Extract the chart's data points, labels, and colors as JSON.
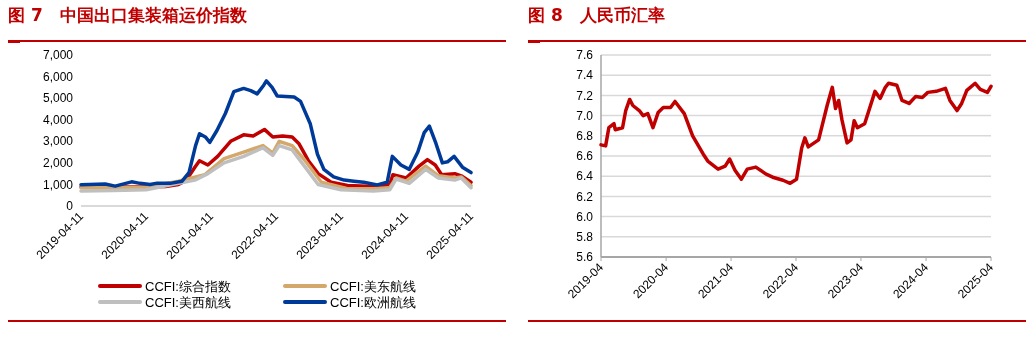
{
  "chart_data": [
    {
      "type": "line",
      "title": "图 7　中国出口集装箱运价指数",
      "xlim": [
        "2019-04-11",
        "2025-04-11"
      ],
      "xticks": [
        "2019-04-11",
        "2020-04-11",
        "2021-04-11",
        "2022-04-11",
        "2023-04-11",
        "2024-04-11",
        "2025-04-11"
      ],
      "ylim": [
        0,
        7000
      ],
      "yticks": [
        0,
        {
          "value": 1000,
          "label": "1,000"
        },
        {
          "value": 2000,
          "label": "2,000"
        },
        {
          "value": 3000,
          "label": "3,000"
        },
        {
          "value": 4000,
          "label": "4,000"
        },
        {
          "value": 5000,
          "label": "5,000"
        },
        {
          "value": 6000,
          "label": "6,000"
        },
        {
          "value": 7000,
          "label": "7,000"
        }
      ],
      "grid": false,
      "legend": "bottom",
      "line_style": "solid",
      "marker": "none",
      "series": [
        {
          "name": "CCFI:综合指数",
          "color": "#c00000",
          "x": [
            "2019-04-11",
            "2020-04-11",
            "2020-07-30",
            "2020-10-10",
            "2020-11-23",
            "2021-01-10",
            "2021-02-05",
            "2021-03-24",
            "2021-05-18",
            "2021-07-30",
            "2021-10-11",
            "2021-12-04",
            "2022-02-05",
            "2022-03-24",
            "2022-05-18",
            "2022-07-11",
            "2022-08-17",
            "2022-10-10",
            "2022-12-04",
            "2023-02-15",
            "2023-05-18",
            "2023-10-11",
            "2024-01-10",
            "2024-01-28",
            "2024-04-11",
            "2024-06-23",
            "2024-08-09",
            "2024-09-22",
            "2024-10-28",
            "2025-01-10",
            "2025-02-15",
            "2025-04-11"
          ],
          "values": [
            880,
            880,
            900,
            1000,
            1200,
            1800,
            2100,
            1900,
            2300,
            3000,
            3300,
            3250,
            3550,
            3200,
            3250,
            3200,
            2900,
            2100,
            1500,
            1100,
            950,
            900,
            1000,
            1450,
            1300,
            1850,
            2150,
            1900,
            1450,
            1500,
            1400,
            1100
          ]
        },
        {
          "name": "CCFI:美东航线",
          "color": "#d4a76a",
          "x": [
            "2019-04-11",
            "2019-10-10",
            "2020-04-11",
            "2020-10-10",
            "2020-12-23",
            "2021-03-06",
            "2021-06-23",
            "2021-10-11",
            "2022-01-28",
            "2022-03-24",
            "2022-04-29",
            "2022-07-11",
            "2022-09-22",
            "2022-12-22",
            "2023-05-18",
            "2023-10-11",
            "2024-01-10",
            "2024-02-15",
            "2024-04-11",
            "2024-07-30",
            "2024-10-10",
            "2025-01-10",
            "2025-02-15",
            "2025-04-11"
          ],
          "values": [
            850,
            850,
            870,
            1150,
            1300,
            1450,
            2200,
            2500,
            2800,
            2450,
            3000,
            2800,
            2100,
            1100,
            800,
            800,
            850,
            1300,
            1150,
            1850,
            1400,
            1300,
            1350,
            950
          ]
        },
        {
          "name": "CCFI:美西航线",
          "color": "#bfbfbf",
          "x": [
            "2019-04-11",
            "2019-10-10",
            "2020-04-11",
            "2020-10-10",
            "2021-01-10",
            "2021-03-24",
            "2021-06-23",
            "2021-10-11",
            "2022-01-28",
            "2022-03-24",
            "2022-04-29",
            "2022-07-11",
            "2022-09-22",
            "2022-12-04",
            "2023-04-11",
            "2023-10-11",
            "2024-01-10",
            "2024-02-15",
            "2024-04-29",
            "2024-07-30",
            "2024-10-10",
            "2025-01-10",
            "2025-02-15",
            "2025-04-11"
          ],
          "values": [
            700,
            720,
            750,
            1050,
            1200,
            1500,
            2000,
            2300,
            2700,
            2350,
            2800,
            2600,
            1800,
            1000,
            750,
            700,
            750,
            1250,
            1050,
            1700,
            1300,
            1200,
            1300,
            850
          ]
        },
        {
          "name": "CCFI:欧洲航线",
          "color": "#003a99",
          "x": [
            "2019-04-11",
            "2019-08-25",
            "2019-10-20",
            "2020-01-20",
            "2020-03-08",
            "2020-05-03",
            "2020-06-12",
            "2020-08-24",
            "2020-10-30",
            "2020-12-08",
            "2021-01-14",
            "2021-02-05",
            "2021-03-10",
            "2021-04-04",
            "2021-05-14",
            "2021-07-01",
            "2021-08-17",
            "2021-10-11",
            "2021-11-20",
            "2021-12-26",
            "2022-02-01",
            "2022-02-16",
            "2022-03-20",
            "2022-04-18",
            "2022-07-22",
            "2022-08-27",
            "2022-10-21",
            "2022-11-30",
            "2023-01-05",
            "2023-03-01",
            "2023-04-29",
            "2023-06-23",
            "2023-08-17",
            "2023-11-01",
            "2023-12-27",
            "2024-01-25",
            "2024-03-13",
            "2024-04-29",
            "2024-06-16",
            "2024-07-22",
            "2024-08-20",
            "2024-09-26",
            "2024-11-01",
            "2024-11-30",
            "2025-01-06",
            "2025-02-22",
            "2025-04-11"
          ],
          "values": [
            990,
            1020,
            920,
            1120,
            1050,
            1000,
            1060,
            1050,
            1150,
            1550,
            2800,
            3350,
            3200,
            2950,
            3500,
            4300,
            5300,
            5450,
            5350,
            5200,
            5600,
            5800,
            5500,
            5100,
            5050,
            4850,
            3800,
            2400,
            1700,
            1350,
            1200,
            1150,
            1100,
            980,
            1100,
            2300,
            1900,
            1700,
            2500,
            3400,
            3700,
            2900,
            2000,
            2050,
            2300,
            1800,
            1550
          ]
        }
      ]
    },
    {
      "type": "line",
      "title": "图 8　人民币汇率",
      "xlim": [
        "2019-04",
        "2025-04"
      ],
      "xticks": [
        "2019-04",
        "2020-04",
        "2021-04",
        "2022-04",
        "2023-04",
        "2024-04",
        "2025-04"
      ],
      "ylim": [
        5.6,
        7.6
      ],
      "yticks": [
        {
          "value": 5.6,
          "label": "5.6"
        },
        {
          "value": 5.8,
          "label": "5.8"
        },
        {
          "value": 6,
          "label": "6.0"
        },
        {
          "value": 6.2,
          "label": "6.2"
        },
        {
          "value": 6.4,
          "label": "6.4"
        },
        {
          "value": 6.6,
          "label": "6.6"
        },
        {
          "value": 6.8,
          "label": "6.8"
        },
        {
          "value": 7,
          "label": "7.0"
        },
        {
          "value": 7.2,
          "label": "7.2"
        },
        {
          "value": 7.4,
          "label": "7.4"
        },
        {
          "value": 7.6,
          "label": "7.6"
        }
      ],
      "grid": "y",
      "legend": false,
      "line_style": "solid",
      "marker": "none",
      "series": [
        {
          "color": "#c00000",
          "x": [
            "2019-04",
            "2019-04-27",
            "2019-05-15",
            "2019-06-13",
            "2019-06-20",
            "2019-07-31",
            "2019-08-18",
            "2019-09-09",
            "2019-09-27",
            "2019-11-02",
            "2019-11-24",
            "2019-12-20",
            "2020-01-18",
            "2020-02-16",
            "2020-03-16",
            "2020-04-26",
            "2020-05-21",
            "2020-07-12",
            "2020-08-28",
            "2020-10-26",
            "2020-11-21",
            "2021-01-18",
            "2021-02-27",
            "2021-03-24",
            "2021-04-23",
            "2021-05-29",
            "2021-07-01",
            "2021-08-18",
            "2021-10-15",
            "2021-11-21",
            "2022-01-18",
            "2022-02-27",
            "2022-04-04",
            "2022-05-03",
            "2022-05-21",
            "2022-06-09",
            "2022-08-06",
            "2022-09-23",
            "2022-10-22",
            "2022-11-09",
            "2022-11-27",
            "2022-12-15",
            "2023-01-13",
            "2023-02-04",
            "2023-02-22",
            "2023-03-12",
            "2023-04-22",
            "2023-06-19",
            "2023-07-18",
            "2023-08-16",
            "2023-09-03",
            "2023-10-20",
            "2023-11-18",
            "2023-12-28",
            "2024-02-03",
            "2024-03-11",
            "2024-04-11",
            "2024-05-28",
            "2024-07-19",
            "2024-08-13",
            "2024-09-22",
            "2024-10-18",
            "2024-11-16",
            "2025-01-02",
            "2025-01-31",
            "2025-03-12",
            "2025-04"
          ],
          "values": [
            6.71,
            6.7,
            6.88,
            6.92,
            6.86,
            6.88,
            7.05,
            7.16,
            7.1,
            7.05,
            7,
            7.02,
            6.88,
            7.03,
            7.08,
            7.08,
            7.14,
            7.02,
            6.8,
            6.62,
            6.55,
            6.47,
            6.5,
            6.57,
            6.46,
            6.37,
            6.47,
            6.49,
            6.42,
            6.39,
            6.36,
            6.33,
            6.37,
            6.68,
            6.78,
            6.69,
            6.76,
            7.1,
            7.28,
            7.07,
            7.15,
            6.96,
            6.73,
            6.76,
            6.95,
            6.88,
            6.92,
            7.24,
            7.17,
            7.28,
            7.32,
            7.3,
            7.15,
            7.12,
            7.19,
            7.18,
            7.23,
            7.24,
            7.27,
            7.15,
            7.05,
            7.12,
            7.25,
            7.32,
            7.26,
            7.23,
            7.29
          ]
        }
      ]
    }
  ]
}
